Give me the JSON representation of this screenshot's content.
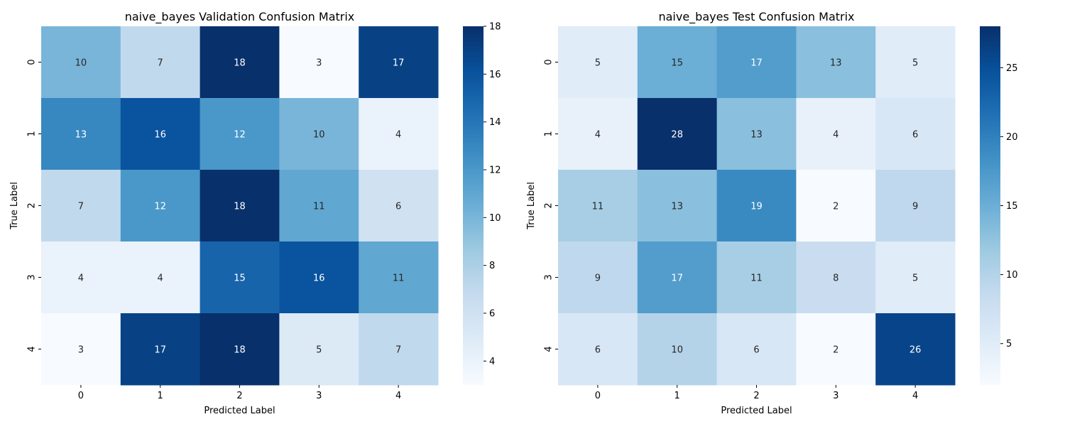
{
  "chart_data": [
    {
      "type": "heatmap",
      "title": "naive_bayes Validation Confusion Matrix",
      "xlabel": "Predicted Label",
      "ylabel": "True Label",
      "x_categories": [
        "0",
        "1",
        "2",
        "3",
        "4"
      ],
      "y_categories": [
        "0",
        "1",
        "2",
        "3",
        "4"
      ],
      "values": [
        [
          10,
          7,
          18,
          3,
          17
        ],
        [
          13,
          16,
          12,
          10,
          4
        ],
        [
          7,
          12,
          18,
          11,
          6
        ],
        [
          4,
          4,
          15,
          16,
          11
        ],
        [
          3,
          17,
          18,
          5,
          7
        ]
      ],
      "colormap": "Blues",
      "vmin": 3,
      "vmax": 18,
      "colorbar_ticks": [
        "4",
        "6",
        "8",
        "10",
        "12",
        "14",
        "16",
        "18"
      ]
    },
    {
      "type": "heatmap",
      "title": "naive_bayes Test Confusion Matrix",
      "xlabel": "Predicted Label",
      "ylabel": "True Label",
      "x_categories": [
        "0",
        "1",
        "2",
        "3",
        "4"
      ],
      "y_categories": [
        "0",
        "1",
        "2",
        "3",
        "4"
      ],
      "values": [
        [
          5,
          15,
          17,
          13,
          5
        ],
        [
          4,
          28,
          13,
          4,
          6
        ],
        [
          11,
          13,
          19,
          2,
          9
        ],
        [
          9,
          17,
          11,
          8,
          5
        ],
        [
          6,
          10,
          6,
          2,
          26
        ]
      ],
      "colormap": "Blues",
      "vmin": 2,
      "vmax": 28,
      "colorbar_ticks": [
        "5",
        "10",
        "15",
        "20",
        "25"
      ]
    }
  ]
}
